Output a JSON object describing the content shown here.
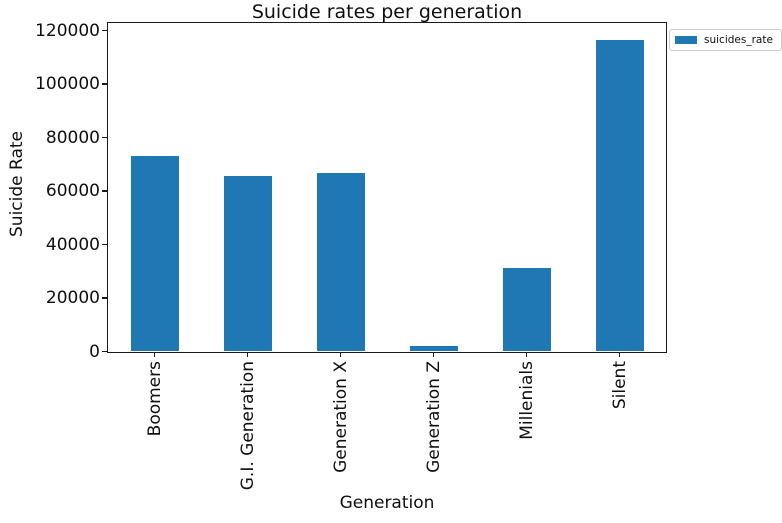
{
  "chart_data": {
    "type": "bar",
    "title": "Suicide rates per generation",
    "xlabel": "Generation",
    "ylabel": "Suicide Rate",
    "categories": [
      "Boomers",
      "G.I. Generation",
      "Generation X",
      "Generation Z",
      "Millenials",
      "Silent"
    ],
    "series": [
      {
        "name": "suicides_rate",
        "values": [
          73200,
          65700,
          66700,
          1900,
          31300,
          116400
        ]
      }
    ],
    "yticks": [
      0,
      20000,
      40000,
      60000,
      80000,
      100000,
      120000
    ],
    "ylim": [
      0,
      123000
    ],
    "grid": false,
    "legend_position": "upper-right-outside",
    "bar_color": "#1f77b4",
    "legend": {
      "label": "suicides_rate"
    }
  }
}
